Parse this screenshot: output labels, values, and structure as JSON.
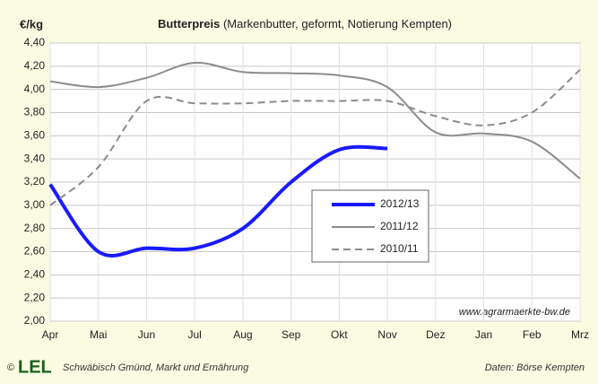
{
  "chart_data": {
    "type": "line",
    "title": "Butterpreis",
    "subtitle": "(Markenbutter, geformt, Notierung Kempten)",
    "ylabel": "€/kg",
    "annotation": "www.agrarmaerkte-bw.de",
    "footer_left": "Schwäbisch Gmünd, Markt und Ernährung",
    "logo": "LEL",
    "copyright": "©",
    "source": "Daten: Börse Kempten",
    "categories": [
      "Apr",
      "Mai",
      "Jun",
      "Jul",
      "Aug",
      "Sep",
      "Okt",
      "Nov",
      "Dez",
      "Jan",
      "Feb",
      "Mrz"
    ],
    "series": [
      {
        "name": "2012/13",
        "color": "#1a1aff",
        "line_width": 4,
        "dashed": false,
        "values": [
          3.18,
          2.6,
          2.63,
          2.63,
          2.8,
          3.2,
          3.48,
          3.49,
          null,
          null,
          null,
          null
        ]
      },
      {
        "name": "2011/12",
        "color": "#8c8c8c",
        "line_width": 2,
        "dashed": false,
        "values": [
          4.07,
          4.02,
          4.1,
          4.23,
          4.15,
          4.14,
          4.12,
          4.02,
          3.63,
          3.62,
          3.55,
          3.23
        ]
      },
      {
        "name": "2010/11",
        "color": "#8c8c8c",
        "line_width": 2,
        "dashed": true,
        "values": [
          3.0,
          3.33,
          3.9,
          3.88,
          3.88,
          3.9,
          3.9,
          3.9,
          3.77,
          3.69,
          3.8,
          4.17
        ]
      }
    ],
    "ylim": [
      2.0,
      4.4
    ],
    "yticks": [
      {
        "value": 2.0,
        "label": "2,00"
      },
      {
        "value": 2.2,
        "label": "2,20"
      },
      {
        "value": 2.4,
        "label": "2,40"
      },
      {
        "value": 2.6,
        "label": "2,60"
      },
      {
        "value": 2.8,
        "label": "2,80"
      },
      {
        "value": 3.0,
        "label": "3,00"
      },
      {
        "value": 3.2,
        "label": "3,20"
      },
      {
        "value": 3.4,
        "label": "3,40"
      },
      {
        "value": 3.6,
        "label": "3,60"
      },
      {
        "value": 3.8,
        "label": "3,80"
      },
      {
        "value": 4.0,
        "label": "4,00"
      },
      {
        "value": 4.2,
        "label": "4,20"
      },
      {
        "value": 4.4,
        "label": "4,40"
      }
    ],
    "grid": true
  }
}
